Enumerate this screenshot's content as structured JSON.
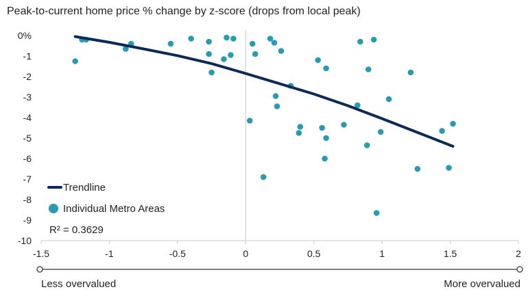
{
  "chart_data": {
    "type": "scatter",
    "title": "Peak-to-current home price % change by z-score (drops from local peak)",
    "xlim": [
      -1.5,
      2
    ],
    "ylim": [
      -10,
      0
    ],
    "x_ticks": [
      -1.5,
      -1,
      -0.5,
      0,
      0.5,
      1,
      1.5,
      2
    ],
    "x_tick_labels": [
      "-1.5",
      "-1",
      "-0.5",
      "0",
      "0.5",
      "1",
      "1.5",
      "2"
    ],
    "y_ticks": [
      0,
      -1,
      -2,
      -3,
      -4,
      -5,
      -6,
      -7,
      -8,
      -9,
      -10
    ],
    "y_tick_labels": [
      "0%",
      "-1",
      "-2",
      "-3",
      "-4",
      "-5",
      "-6",
      "-7",
      "-8",
      "-9",
      "-10"
    ],
    "x_axis_left_label": "Less overvalued",
    "x_axis_right_label": "More overvalued",
    "legend": {
      "trendline_label": "Trendline",
      "points_label": "Individual Metro Areas",
      "r_squared_label": "R² = 0.3629"
    },
    "colors": {
      "trendline": "#0b2a57",
      "points": "#2a9aae",
      "axis": "#c8c8c8",
      "text": "#222222"
    },
    "trendline": {
      "x": [
        -1.25,
        -1.0,
        -0.75,
        -0.5,
        -0.25,
        0.0,
        0.25,
        0.5,
        0.75,
        1.0,
        1.25,
        1.52
      ],
      "y": [
        -0.05,
        -0.33,
        -0.65,
        -0.98,
        -1.37,
        -1.85,
        -2.35,
        -2.85,
        -3.42,
        -4.05,
        -4.7,
        -5.4
      ]
    },
    "points": [
      {
        "x": -1.25,
        "y": -1.25
      },
      {
        "x": -1.2,
        "y": -0.2
      },
      {
        "x": -1.17,
        "y": -0.2
      },
      {
        "x": -0.88,
        "y": -0.65
      },
      {
        "x": -0.84,
        "y": -0.4
      },
      {
        "x": -0.55,
        "y": -0.4
      },
      {
        "x": -0.4,
        "y": -0.15
      },
      {
        "x": -0.27,
        "y": -0.3
      },
      {
        "x": -0.27,
        "y": -0.9
      },
      {
        "x": -0.25,
        "y": -1.8
      },
      {
        "x": -0.16,
        "y": -1.15
      },
      {
        "x": -0.14,
        "y": -0.1
      },
      {
        "x": -0.11,
        "y": -0.95
      },
      {
        "x": -0.09,
        "y": -0.15
      },
      {
        "x": 0.03,
        "y": -4.15
      },
      {
        "x": 0.05,
        "y": -0.4
      },
      {
        "x": 0.07,
        "y": -0.9
      },
      {
        "x": 0.13,
        "y": -6.9
      },
      {
        "x": 0.18,
        "y": -0.15
      },
      {
        "x": 0.21,
        "y": -0.35
      },
      {
        "x": 0.22,
        "y": -2.95
      },
      {
        "x": 0.23,
        "y": -3.45
      },
      {
        "x": 0.26,
        "y": -0.75
      },
      {
        "x": 0.33,
        "y": -2.45
      },
      {
        "x": 0.39,
        "y": -4.75
      },
      {
        "x": 0.4,
        "y": -4.45
      },
      {
        "x": 0.53,
        "y": -1.2
      },
      {
        "x": 0.56,
        "y": -4.5
      },
      {
        "x": 0.58,
        "y": -6.0
      },
      {
        "x": 0.59,
        "y": -5.0
      },
      {
        "x": 0.59,
        "y": -1.6
      },
      {
        "x": 0.72,
        "y": -4.35
      },
      {
        "x": 0.82,
        "y": -3.4
      },
      {
        "x": 0.84,
        "y": -0.3
      },
      {
        "x": 0.89,
        "y": -5.35
      },
      {
        "x": 0.9,
        "y": -1.65
      },
      {
        "x": 0.94,
        "y": -0.2
      },
      {
        "x": 0.96,
        "y": -8.65
      },
      {
        "x": 0.99,
        "y": -4.7
      },
      {
        "x": 1.05,
        "y": -3.1
      },
      {
        "x": 1.21,
        "y": -1.8
      },
      {
        "x": 1.26,
        "y": -6.5
      },
      {
        "x": 1.44,
        "y": -4.65
      },
      {
        "x": 1.49,
        "y": -6.45
      },
      {
        "x": 1.52,
        "y": -4.3
      }
    ]
  }
}
